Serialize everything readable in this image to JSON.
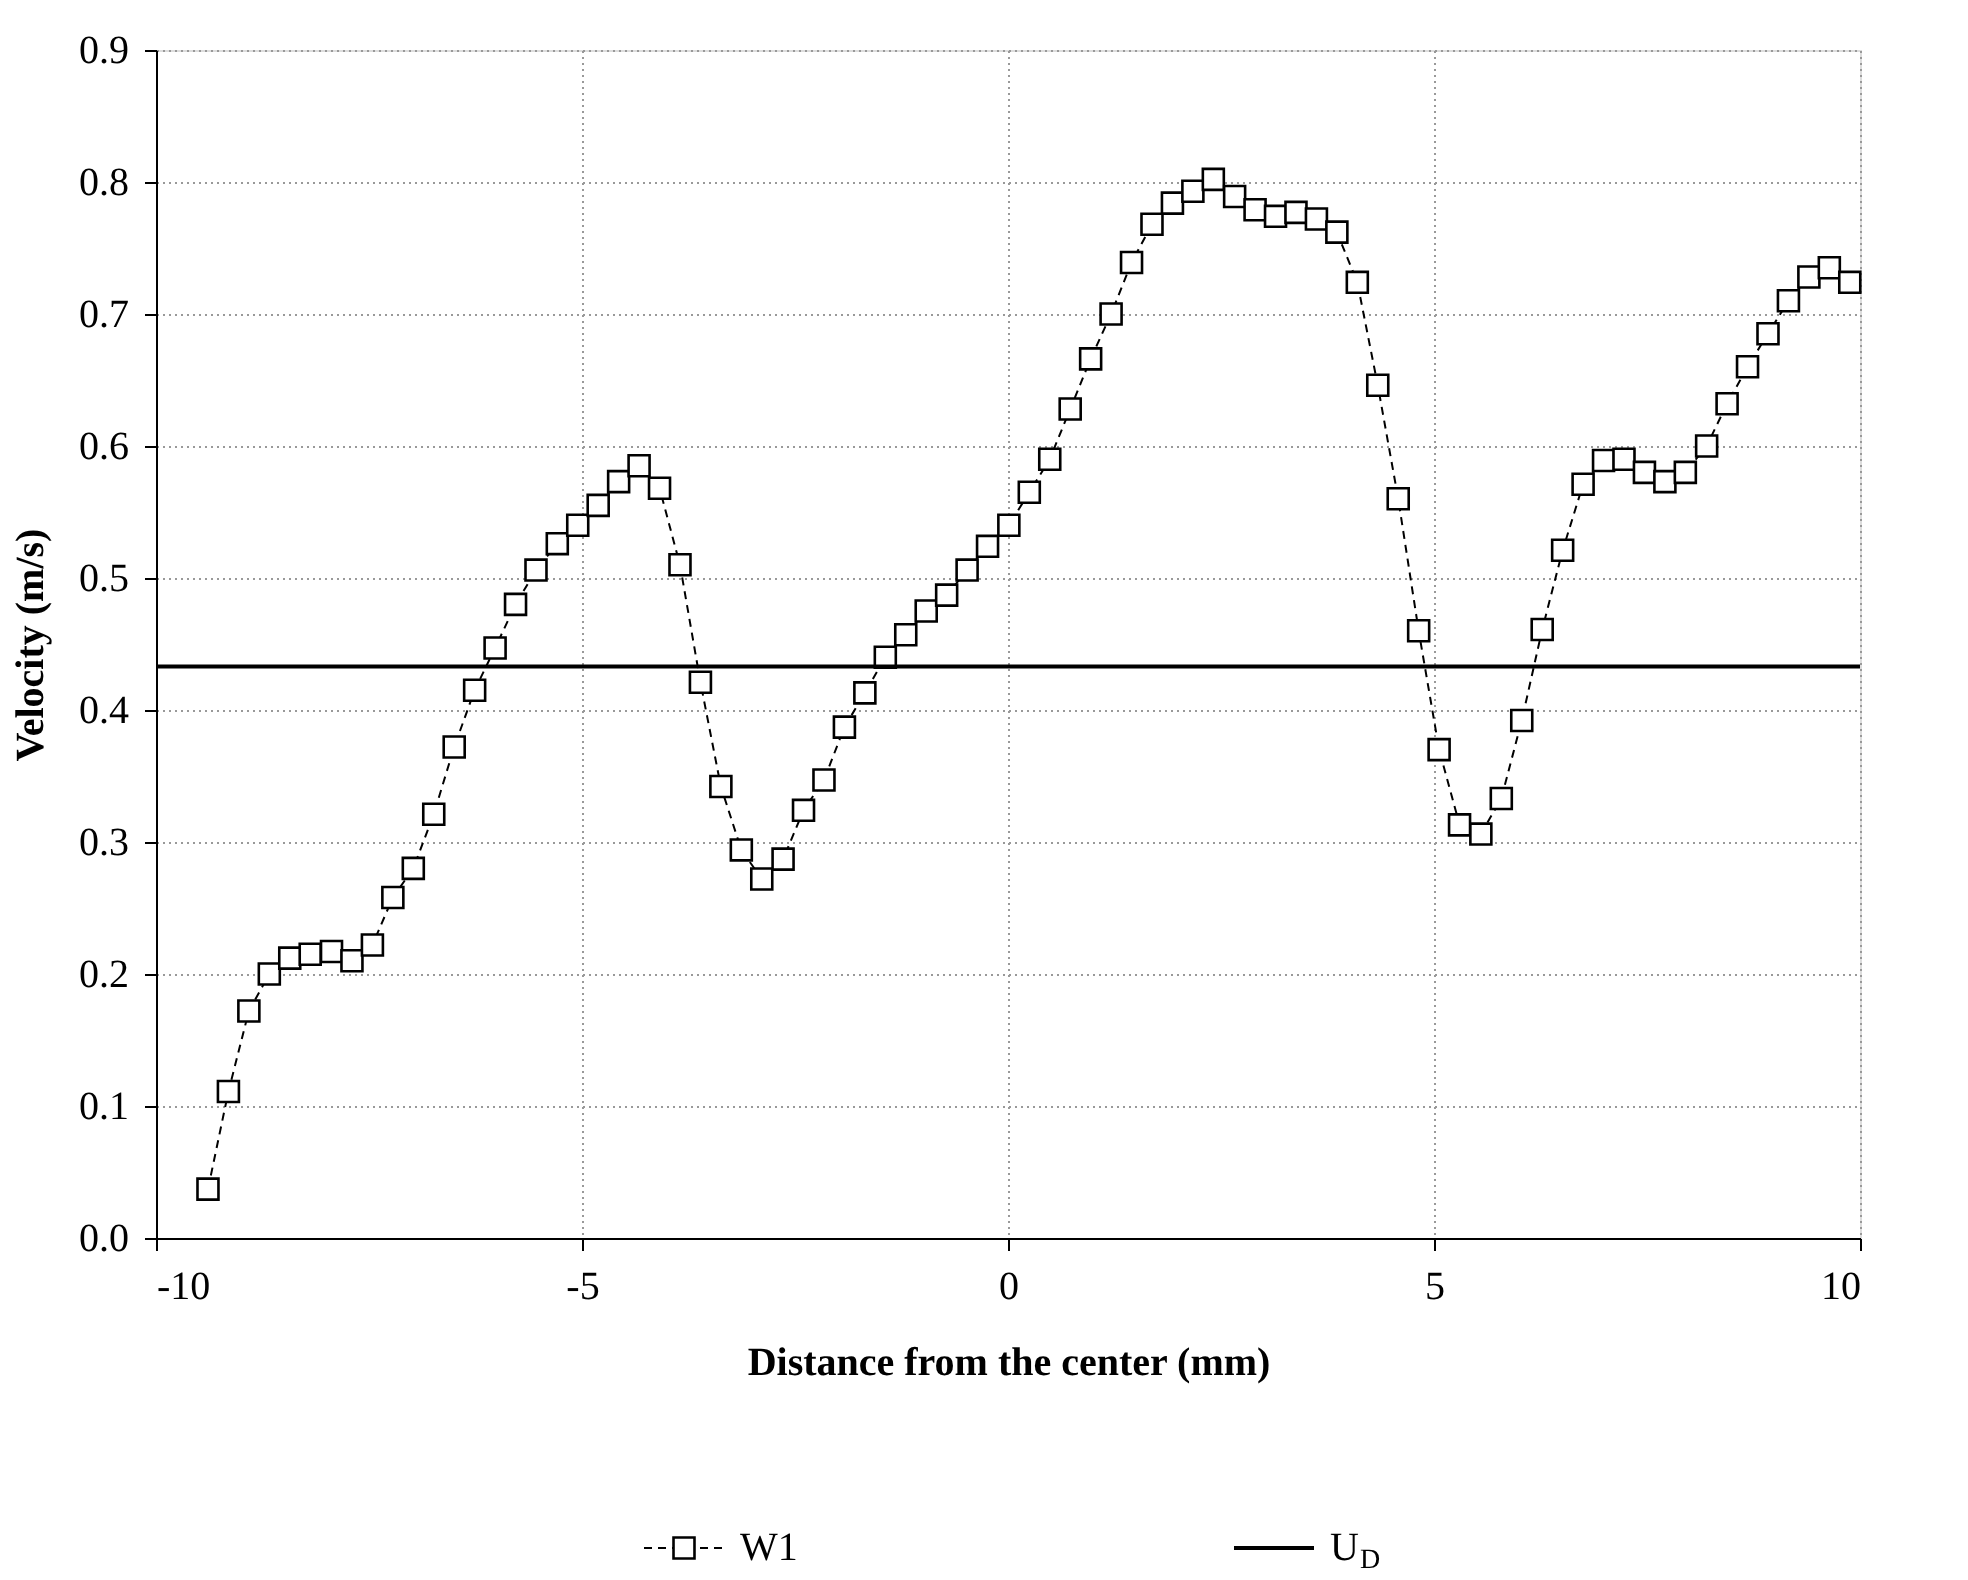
{
  "chart_data": {
    "type": "line",
    "xlabel": "Distance from the center (mm)",
    "ylabel": "Velocity (m/s)",
    "x": [
      -9.39,
      -9.15,
      -8.91,
      -8.67,
      -8.43,
      -8.19,
      -7.94,
      -7.7,
      -7.46,
      -7.22,
      -6.98,
      -6.74,
      -6.5,
      -6.26,
      -6.02,
      -5.78,
      -5.54,
      -5.29,
      -5.05,
      -4.81,
      -4.57,
      -4.33,
      -4.09,
      -3.85,
      -3.61,
      -3.37,
      -3.13,
      -2.89,
      -2.64,
      -2.4,
      -2.16,
      -1.92,
      -1.68,
      -1.44,
      -1.2,
      -0.96,
      -0.72,
      -0.48,
      -0.24,
      0.01,
      0.25,
      0.49,
      0.73,
      0.97,
      1.21,
      1.45,
      1.69,
      1.93,
      2.17,
      2.41,
      2.66,
      2.9,
      3.14,
      3.38,
      3.62,
      3.86,
      4.1,
      4.34,
      4.58,
      4.82,
      5.06,
      5.3,
      5.55,
      5.79,
      6.03,
      6.27,
      6.51,
      6.75,
      6.99,
      7.23,
      7.47,
      7.71,
      7.95,
      8.2,
      8.44,
      8.68,
      8.92,
      9.16,
      9.4,
      9.64,
      9.88
    ],
    "series": [
      {
        "name": "W1",
        "color": "#000000",
        "marker": "square",
        "line_style": "dashed",
        "values": [
          0.037,
          0.111,
          0.172,
          0.2,
          0.212,
          0.215,
          0.217,
          0.21,
          0.222,
          0.258,
          0.28,
          0.321,
          0.372,
          0.415,
          0.447,
          0.48,
          0.506,
          0.526,
          0.54,
          0.555,
          0.573,
          0.585,
          0.568,
          0.51,
          0.421,
          0.342,
          0.294,
          0.272,
          0.287,
          0.324,
          0.347,
          0.387,
          0.413,
          0.44,
          0.457,
          0.475,
          0.487,
          0.506,
          0.524,
          0.54,
          0.565,
          0.59,
          0.628,
          0.666,
          0.7,
          0.739,
          0.768,
          0.784,
          0.793,
          0.802,
          0.789,
          0.779,
          0.774,
          0.777,
          0.772,
          0.762,
          0.724,
          0.646,
          0.56,
          0.46,
          0.37,
          0.313,
          0.306,
          0.333,
          0.392,
          0.461,
          0.521,
          0.571,
          0.589,
          0.59,
          0.58,
          0.573,
          0.58,
          0.6,
          0.632,
          0.66,
          0.685,
          0.71,
          0.728,
          0.735,
          0.724
        ]
      }
    ],
    "ref_lines": [
      {
        "axis": "y",
        "value": 0.433,
        "label": "U$_{D}$",
        "color": "#000000",
        "line_style": "solid"
      }
    ],
    "xlim": [
      -10,
      10
    ],
    "xticks": [
      -10,
      -5,
      0,
      5,
      10
    ],
    "ylim": [
      0,
      0.9
    ],
    "yticks": [
      {
        "value": 0,
        "label": "0.0"
      },
      0.1,
      0.2,
      0.3,
      0.4,
      0.5,
      0.6,
      0.7,
      0.8,
      0.9
    ],
    "grid": true,
    "legend": "bottom"
  }
}
